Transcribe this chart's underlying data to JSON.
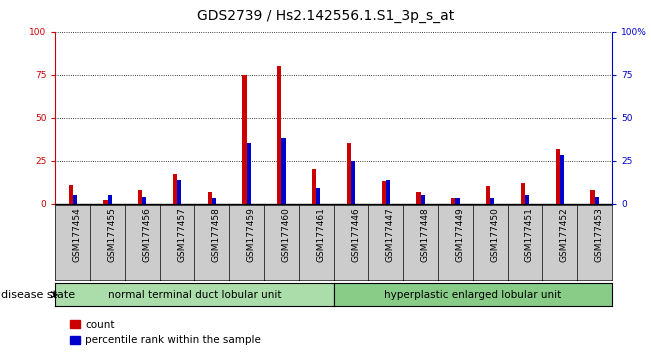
{
  "title": "GDS2739 / Hs2.142556.1.S1_3p_s_at",
  "samples": [
    "GSM177454",
    "GSM177455",
    "GSM177456",
    "GSM177457",
    "GSM177458",
    "GSM177459",
    "GSM177460",
    "GSM177461",
    "GSM177446",
    "GSM177447",
    "GSM177448",
    "GSM177449",
    "GSM177450",
    "GSM177451",
    "GSM177452",
    "GSM177453"
  ],
  "count_values": [
    11,
    2,
    8,
    17,
    7,
    75,
    80,
    20,
    35,
    13,
    7,
    3,
    10,
    12,
    32,
    8
  ],
  "percentile_values": [
    5,
    5,
    4,
    14,
    3,
    35,
    38,
    9,
    25,
    14,
    5,
    3,
    3,
    5,
    28,
    4
  ],
  "group1_label": "normal terminal duct lobular unit",
  "group2_label": "hyperplastic enlarged lobular unit",
  "group1_count": 8,
  "group2_count": 8,
  "disease_state_label": "disease state",
  "ylim": [
    0,
    100
  ],
  "yticks": [
    0,
    25,
    50,
    75,
    100
  ],
  "count_color": "#cc0000",
  "percentile_color": "#0000cc",
  "group1_color": "#aaddaa",
  "group2_color": "#88cc88",
  "tick_bg_color": "#cccccc",
  "legend_count": "count",
  "legend_percentile": "percentile rank within the sample",
  "title_fontsize": 10,
  "tick_fontsize": 6.5,
  "label_fontsize": 8
}
